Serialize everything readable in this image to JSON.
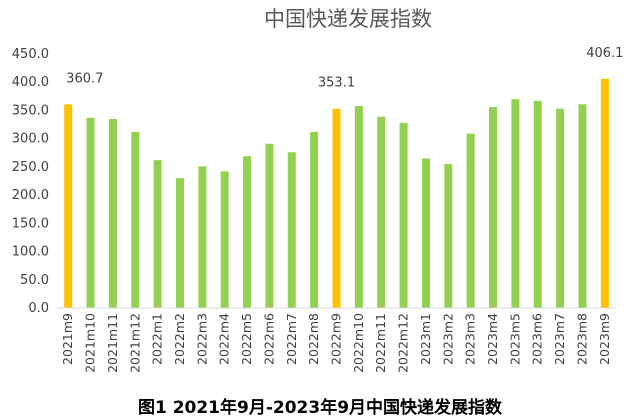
{
  "caption": "图1 2021年9月-2023年9月中国快递发展指数",
  "chart_data": {
    "type": "bar",
    "title": "中国快递发展指数",
    "xlabel": "",
    "ylabel": "",
    "ylim": [
      0,
      450
    ],
    "yticks": [
      "0.0",
      "50.0",
      "100.0",
      "150.0",
      "200.0",
      "250.0",
      "300.0",
      "350.0",
      "400.0",
      "450.0"
    ],
    "grid": false,
    "categories": [
      "2021m9",
      "2021m10",
      "2021m11",
      "2021m12",
      "2022m1",
      "2022m2",
      "2022m3",
      "2022m4",
      "2022m5",
      "2022m6",
      "2022m7",
      "2022m8",
      "2022m9",
      "2022m10",
      "2022m11",
      "2022m12",
      "2023m1",
      "2023m2",
      "2023m3",
      "2023m4",
      "2023m5",
      "2023m6",
      "2023m7",
      "2023m8",
      "2023m9"
    ],
    "values": [
      360.7,
      337,
      335,
      312,
      262,
      230,
      251,
      242,
      269,
      291,
      276,
      312,
      353.1,
      358,
      339,
      328,
      265,
      255,
      309,
      356,
      370,
      367,
      353,
      361,
      406.1
    ],
    "highlight_indices": [
      0,
      12,
      24
    ],
    "data_labels": [
      {
        "index": 0,
        "text": "360.7"
      },
      {
        "index": 12,
        "text": "353.1"
      },
      {
        "index": 24,
        "text": "406.1"
      }
    ],
    "colors": {
      "normal": "#92D050",
      "highlight": "#FFC000",
      "axis": "#d9d9d9",
      "text": "#404040",
      "title": "#595959"
    }
  }
}
